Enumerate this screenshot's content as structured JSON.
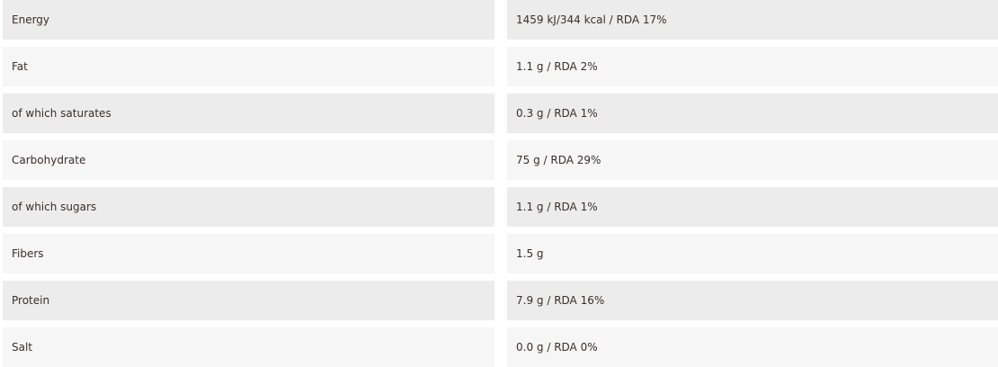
{
  "nutrition": {
    "rows": [
      {
        "label": "Energy",
        "value": "1459 kJ/344 kcal / RDA 17%"
      },
      {
        "label": "Fat",
        "value": "1.1 g / RDA 2%"
      },
      {
        "label": "of which saturates",
        "value": "0.3 g / RDA 1%"
      },
      {
        "label": "Carbohydrate",
        "value": "75 g / RDA 29%"
      },
      {
        "label": "of which sugars",
        "value": "1.1 g / RDA 1%"
      },
      {
        "label": "Fibers",
        "value": "1.5 g"
      },
      {
        "label": "Protein",
        "value": "7.9 g / RDA 16%"
      },
      {
        "label": "Salt",
        "value": "0.0 g / RDA 0%"
      }
    ]
  },
  "colors": {
    "row_shade": "#ececec",
    "row_light": "#f6f6f6",
    "text": "#3a2e2a"
  }
}
